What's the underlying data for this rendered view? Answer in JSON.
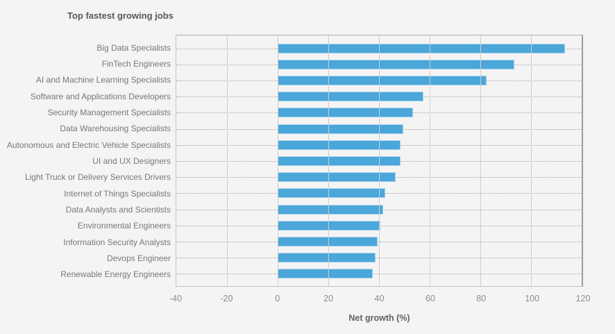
{
  "chart_data": {
    "type": "bar",
    "orientation": "horizontal",
    "title": "Top fastest growing jobs",
    "categories": [
      "Big Data Specialists",
      "FinTech Engineers",
      "AI and Machine Learning Specialists",
      "Software and Applications Developers",
      "Security Management Specialists",
      "Data Warehousing Specialists",
      "Autonomous and Electric Vehicle Specialists",
      "UI and UX Designers",
      "Light Truck or Delivery Services Drivers",
      "Internet of Things Specialists",
      "Data Analysts and Scientists",
      "Environmental Engineers",
      "Information Security Analysts",
      "Devops Engineer",
      "Renewable Energy Engineers"
    ],
    "values": [
      113,
      93,
      82,
      57,
      53,
      49,
      48,
      48,
      46,
      42,
      41,
      40,
      39,
      38,
      37
    ],
    "xlabel": "Net growth (%)",
    "ylabel": "",
    "xlim": [
      -40,
      120
    ],
    "xticks": [
      -40,
      -20,
      0,
      20,
      40,
      60,
      80,
      100,
      120
    ],
    "grid": true,
    "grid_row_style": "dotted",
    "legend": false,
    "bar_color": "#4ba6d9",
    "bar_border_color": "#a3d3ec",
    "background_color": "#f4f4f4"
  }
}
